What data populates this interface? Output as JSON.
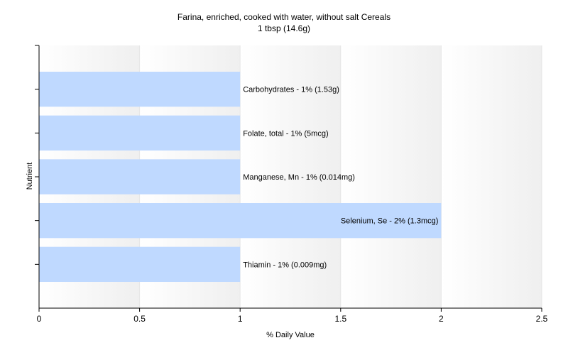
{
  "chart_data": {
    "type": "bar",
    "orientation": "horizontal",
    "title": "Farina, enriched, cooked with water, without salt Cereals",
    "subtitle": "1 tbsp (14.6g)",
    "xlabel": "% Daily Value",
    "ylabel": "Nutrient",
    "xlim": [
      0,
      2.5
    ],
    "xticks": [
      "0",
      "0.5",
      "1",
      "1.5",
      "2",
      "2.5"
    ],
    "grid": true,
    "categories": [
      "Carbohydrates",
      "Folate, total",
      "Manganese, Mn",
      "Selenium, Se",
      "Thiamin"
    ],
    "values": [
      1,
      1,
      1,
      2,
      1
    ],
    "bar_labels": [
      "Carbohydrates - 1% (1.53g)",
      "Folate, total - 1% (5mcg)",
      "Manganese, Mn - 1% (0.014mg)",
      "Selenium, Se - 2% (1.3mcg)",
      "Thiamin - 1% (0.009mg)"
    ],
    "colors": {
      "bar": "#bfd9ff",
      "grid": "#e6e6e6",
      "band_light": "#ffffff",
      "band_dark": "#efefef",
      "axis": "#000000"
    }
  }
}
